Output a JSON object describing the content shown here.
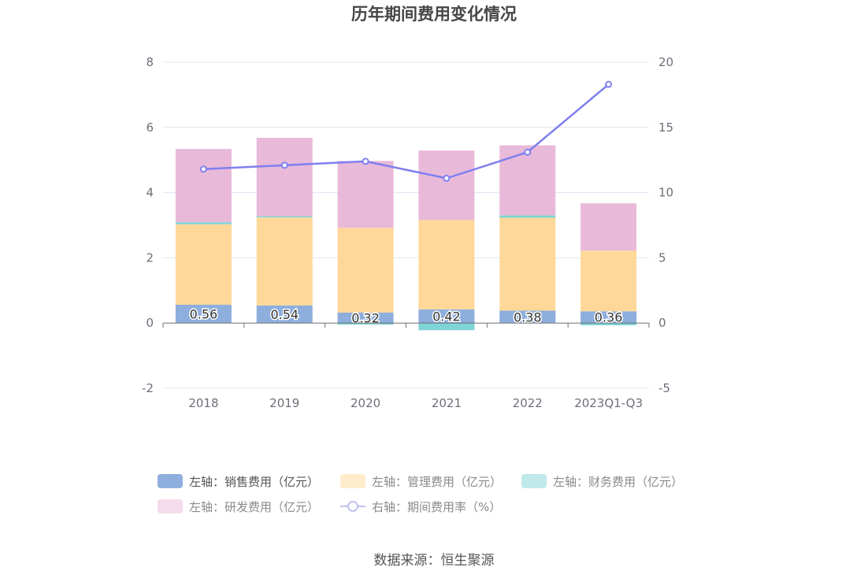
{
  "chart_data": {
    "type": "bar",
    "title": "历年期间费用变化情况",
    "categories": [
      "2018",
      "2019",
      "2020",
      "2021",
      "2022",
      "2023Q1-Q3"
    ],
    "series": [
      {
        "name": "左轴：销售费用（亿元）",
        "axis": "left",
        "type": "bar",
        "color": "#8eaedd",
        "values": [
          0.56,
          0.54,
          0.32,
          0.42,
          0.38,
          0.36
        ]
      },
      {
        "name": "左轴：管理费用（亿元）",
        "axis": "left",
        "type": "bar",
        "color": "#ffd899",
        "values": [
          2.47,
          2.7,
          2.6,
          2.74,
          2.85,
          1.86
        ]
      },
      {
        "name": "左轴：财务费用（亿元）",
        "axis": "left",
        "type": "bar",
        "color": "#7ed4d6",
        "values": [
          0.06,
          0.04,
          -0.05,
          -0.22,
          0.07,
          -0.07
        ]
      },
      {
        "name": "左轴：研发费用（亿元）",
        "axis": "left",
        "type": "bar",
        "color": "#e8b9d9",
        "values": [
          2.25,
          2.4,
          2.05,
          2.13,
          2.15,
          1.45
        ]
      },
      {
        "name": "右轴：期间费用率（%）",
        "axis": "right",
        "type": "line",
        "color": "#7f7fef",
        "values": [
          11.8,
          12.1,
          12.4,
          11.1,
          13.1,
          18.3
        ]
      }
    ],
    "data_labels": [
      "0.56",
      "0.54",
      "0.32",
      "0.42",
      "0.38",
      "0.36"
    ],
    "y_left": {
      "range": [
        -2,
        8
      ],
      "ticks": [
        "-2",
        "0",
        "2",
        "4",
        "6",
        "8"
      ]
    },
    "y_right": {
      "range": [
        -5,
        20
      ],
      "ticks": [
        "-5",
        "0",
        "5",
        "10",
        "15",
        "20"
      ]
    },
    "stacked": true,
    "grid": true,
    "legend_position": "bottom"
  },
  "source": "数据来源：恒生聚源"
}
